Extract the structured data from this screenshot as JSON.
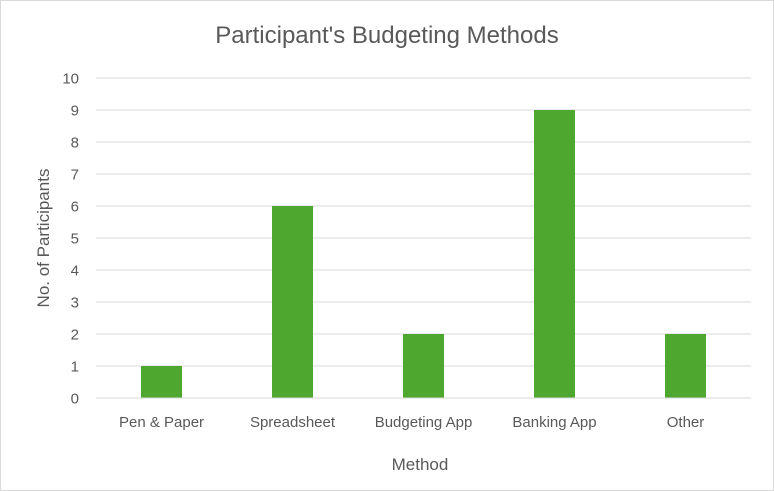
{
  "chart_data": {
    "type": "bar",
    "title": "Participant's Budgeting Methods",
    "xlabel": "Method",
    "ylabel": "No. of Participants",
    "categories": [
      "Pen & Paper",
      "Spreadsheet",
      "Budgeting App",
      "Banking App",
      "Other"
    ],
    "values": [
      1,
      6,
      2,
      9,
      2
    ],
    "ylim": [
      0,
      10
    ],
    "yticks": [
      "0",
      "1",
      "2",
      "3",
      "4",
      "5",
      "6",
      "7",
      "8",
      "9",
      "10"
    ],
    "grid": true,
    "legend": "none",
    "bar_color": "#4ea72e",
    "grid_color": "#d9d9d9"
  }
}
